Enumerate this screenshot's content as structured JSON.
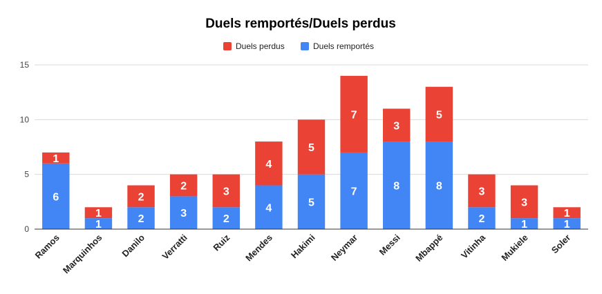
{
  "chart_data": {
    "type": "bar",
    "stacked": true,
    "title": "Duels remportés/Duels perdus",
    "xlabel": "",
    "ylabel": "",
    "categories": [
      "Ramos",
      "Marquinhos",
      "Danilo",
      "Verratti",
      "Ruiz",
      "Mendes",
      "Hakimi",
      "Neymar",
      "Messi",
      "Mbappé",
      "Vitinha",
      "Mukiele",
      "Soler"
    ],
    "series": [
      {
        "name": "Duels remportés",
        "color": "#4285f4",
        "values": [
          6,
          1,
          2,
          3,
          2,
          4,
          5,
          7,
          8,
          8,
          2,
          1,
          1
        ]
      },
      {
        "name": "Duels perdus",
        "color": "#ea4335",
        "values": [
          1,
          1,
          2,
          2,
          3,
          4,
          5,
          7,
          3,
          5,
          3,
          3,
          1
        ]
      }
    ],
    "legend_order": [
      "Duels perdus",
      "Duels remportés"
    ],
    "ylim": [
      0,
      15
    ],
    "yticks": [
      "0",
      "5",
      "10",
      "15"
    ],
    "grid": true,
    "legend_position": "top-center"
  }
}
